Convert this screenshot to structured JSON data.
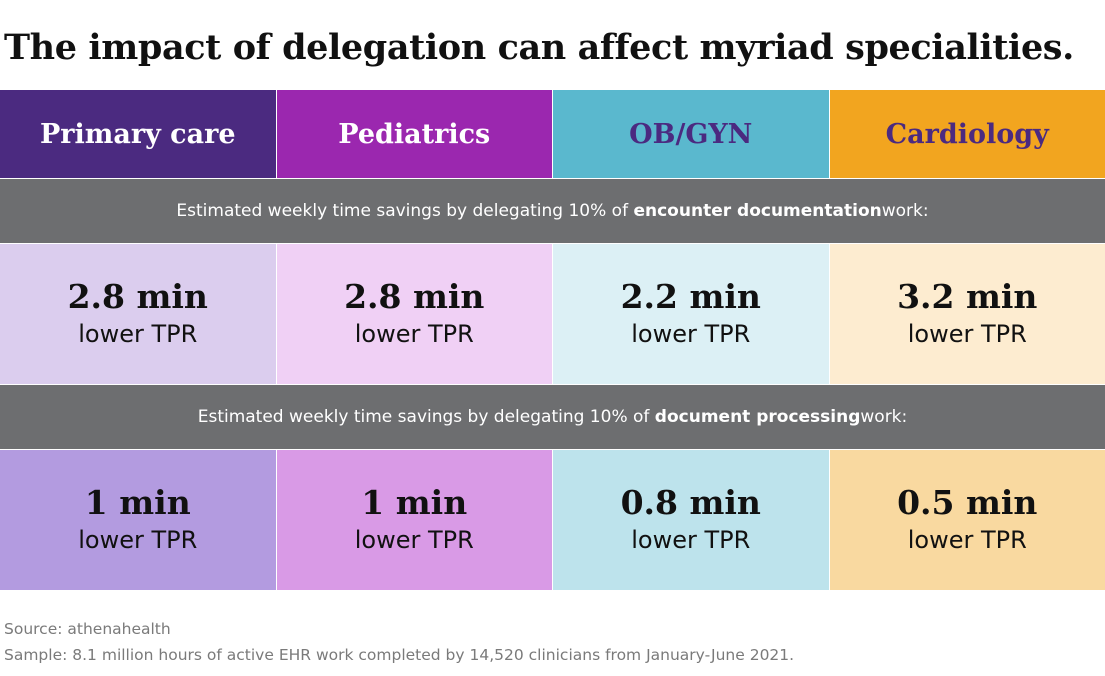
{
  "title": "The impact of delegation can affect myriad specialities.",
  "colors": {
    "primary_care_header": "#4b2a80",
    "pediatrics_header": "#9b27af",
    "obgyn_header": "#5ab8ce",
    "cardiology_header": "#f2a51f",
    "band": "#6d6e70",
    "header_text_dark": "#4b2a80"
  },
  "specialties": [
    {
      "name": "Primary care",
      "header_color": "#4b2a80",
      "text_color": "#ffffff",
      "light": "#dbcdee",
      "mid": "#b39be0"
    },
    {
      "name": "Pediatrics",
      "header_color": "#9b27af",
      "text_color": "#ffffff",
      "light": "#f0d0f5",
      "mid": "#d99ae6"
    },
    {
      "name": "OB/GYN",
      "header_color": "#5ab8ce",
      "text_color": "#4b2a80",
      "light": "#dcf0f5",
      "mid": "#bde3ec"
    },
    {
      "name": "Cardiology",
      "header_color": "#f2a51f",
      "text_color": "#4b2a80",
      "light": "#fdecd0",
      "mid": "#f9d9a0"
    }
  ],
  "encounter": {
    "band_prefix": "Estimated weekly time savings by delegating 10% of ",
    "band_bold": "encounter documentation",
    "band_suffix": " work:",
    "values": [
      "2.8 min",
      "2.8 min",
      "2.2 min",
      "3.2 min"
    ],
    "units": [
      "lower TPR",
      "lower TPR",
      "lower TPR",
      "lower TPR"
    ]
  },
  "processing": {
    "band_prefix": "Estimated weekly time savings by delegating 10% of ",
    "band_bold": "document processing",
    "band_suffix": " work:",
    "values": [
      "1 min",
      "1 min",
      "0.8 min",
      "0.5 min"
    ],
    "units": [
      "lower TPR",
      "lower TPR",
      "lower TPR",
      "lower TPR"
    ]
  },
  "footer": {
    "source": "Source: athenahealth",
    "sample": "Sample: 8.1 million hours of active EHR work completed by 14,520 clinicians from January-June 2021."
  }
}
